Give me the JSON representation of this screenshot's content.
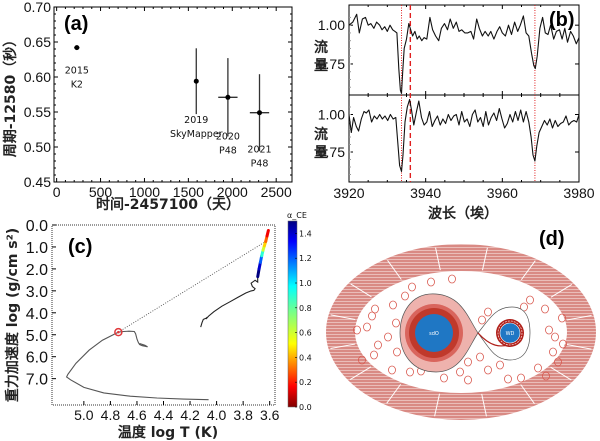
{
  "figure": {
    "panels": [
      "(a)",
      "(b)",
      "(c)",
      "(d)"
    ]
  },
  "chart_data": [
    {
      "id": "a",
      "type": "scatter",
      "panel_label": "(a)",
      "title": "",
      "xlabel": "时间-2457100（天）",
      "ylabel": "周期-12580（秒）",
      "xlim": [
        -30,
        2680
      ],
      "ylim": [
        0.45,
        0.7
      ],
      "xticks": [
        0,
        500,
        1000,
        1500,
        2000,
        2500
      ],
      "xtick_labels": [
        "0",
        "500",
        "1000",
        "1500",
        "2000",
        "2500"
      ],
      "yticks": [
        0.45,
        0.5,
        0.55,
        0.6,
        0.65,
        0.7
      ],
      "ytick_labels": [
        "0.45",
        "0.50",
        "0.55",
        "0.60",
        "0.65",
        "0.70"
      ],
      "points": [
        {
          "x": 230,
          "y": 0.642,
          "xerr": 30,
          "yerr": 0.001,
          "label": [
            "2015",
            "K2"
          ]
        },
        {
          "x": 1590,
          "y": 0.594,
          "xerr": 0,
          "yerr": 0.047,
          "label": [
            "2019",
            "SkyMapper"
          ]
        },
        {
          "x": 1950,
          "y": 0.571,
          "xerr": 110,
          "yerr": 0.056,
          "label": [
            "2020",
            "P48"
          ]
        },
        {
          "x": 2310,
          "y": 0.549,
          "xerr": 110,
          "yerr": 0.055,
          "label": [
            "2021",
            "P48"
          ]
        }
      ]
    },
    {
      "id": "b",
      "type": "line",
      "panel_label": "(b)",
      "xlabel": "波长（埃）",
      "ylabel": "流量",
      "xlim": [
        3920,
        3980
      ],
      "xticks": [
        3920,
        3940,
        3960,
        3980
      ],
      "xtick_labels": [
        "3920",
        "3940",
        "3960",
        "3980"
      ],
      "ylim": [
        0.55,
        1.13
      ],
      "yticks": [
        0.75,
        1.0
      ],
      "ytick_labels": [
        "0.75",
        "1.00"
      ],
      "vlines_dotted": [
        3933.7,
        3968.5
      ],
      "vline_dashed": 3936.0,
      "series": [
        {
          "name": "upper",
          "x": [
            3920,
            3921,
            3922,
            3922.7,
            3923.5,
            3924.3,
            3925,
            3925.7,
            3926.5,
            3927.2,
            3928,
            3928.6,
            3929.3,
            3930,
            3930.7,
            3931.4,
            3932,
            3932.5,
            3933,
            3933.4,
            3933.7,
            3934,
            3934.4,
            3935,
            3935.6,
            3936.1,
            3936.6,
            3937.2,
            3937.8,
            3938.3,
            3939,
            3939.6,
            3940.3,
            3941.1,
            3941.8,
            3942.6,
            3943.4,
            3944.1,
            3944.9,
            3945.7,
            3946.4,
            3947.2,
            3948,
            3948.7,
            3949.4,
            3950.2,
            3951,
            3951.8,
            3952.5,
            3953.3,
            3954,
            3954.8,
            3955.5,
            3956.3,
            3957,
            3957.8,
            3958.6,
            3959.3,
            3960,
            3960.8,
            3961.6,
            3962.4,
            3963.2,
            3964,
            3964.7,
            3965.5,
            3966.2,
            3966.9,
            3967.6,
            3968.2,
            3968.6,
            3969.1,
            3969.8,
            3970.5,
            3971.2,
            3971.9,
            3972.6,
            3973.4,
            3974.1,
            3974.9,
            3975.6,
            3976.3,
            3977,
            3977.8,
            3978.5,
            3979.3,
            3980
          ],
          "y": [
            1.0,
            1.02,
            1.07,
            0.95,
            1.04,
            1.05,
            1.0,
            1.01,
            0.98,
            1.02,
            1.0,
            0.97,
            0.99,
            0.96,
            1.0,
            0.97,
            0.96,
            0.95,
            0.72,
            0.58,
            0.56,
            0.7,
            0.85,
            0.91,
            1.01,
            0.97,
            0.93,
            0.96,
            0.91,
            0.93,
            0.9,
            0.92,
            0.91,
            1.05,
            0.97,
            0.93,
            0.9,
            0.98,
            1.01,
            0.97,
            1.04,
            0.98,
            1.02,
            0.96,
            0.97,
            0.95,
            0.95,
            0.96,
            0.91,
            1.04,
            0.98,
            0.93,
            0.96,
            0.93,
            0.96,
            0.91,
            0.96,
            0.99,
            0.95,
            0.93,
            1.0,
            0.94,
            1.02,
            0.96,
            1.0,
            1.06,
            0.95,
            0.93,
            0.82,
            0.74,
            0.72,
            0.8,
            0.98,
            1.05,
            0.95,
            0.94,
            1.0,
            0.91,
            0.96,
            0.97,
            0.91,
            0.98,
            0.89,
            0.96,
            0.93,
            0.88,
            0.92
          ]
        },
        {
          "name": "lower",
          "x": [
            3920,
            3920.6,
            3921.2,
            3921.9,
            3922.5,
            3923.2,
            3923.9,
            3924.5,
            3925.2,
            3925.9,
            3926.6,
            3927.3,
            3928,
            3928.7,
            3929.4,
            3930.1,
            3930.8,
            3931.5,
            3932.2,
            3932.7,
            3933.2,
            3933.7,
            3934.1,
            3934.6,
            3935.2,
            3935.8,
            3936.3,
            3936.9,
            3937.6,
            3938.2,
            3938.9,
            3939.6,
            3940.3,
            3941,
            3941.7,
            3942.4,
            3943.1,
            3943.8,
            3944.5,
            3945.2,
            3945.9,
            3946.6,
            3947.3,
            3948,
            3948.7,
            3949.4,
            3950.1,
            3950.8,
            3951.5,
            3952.2,
            3952.9,
            3953.6,
            3954.3,
            3955,
            3955.7,
            3956.4,
            3957.1,
            3957.8,
            3958.5,
            3959.2,
            3959.9,
            3960.6,
            3961.3,
            3962,
            3962.7,
            3963.4,
            3964.1,
            3964.8,
            3965.5,
            3966.2,
            3966.9,
            3967.5,
            3968,
            3968.5,
            3969,
            3969.6,
            3970.3,
            3971,
            3971.7,
            3972.4,
            3973.1,
            3973.8,
            3974.5,
            3975.2,
            3975.9,
            3976.6,
            3977.3,
            3978,
            3978.7,
            3979.4,
            3980
          ],
          "y": [
            1.0,
            0.88,
            0.98,
            0.92,
            0.89,
            0.97,
            1.02,
            1.01,
            1.03,
            0.95,
            0.99,
            0.97,
            1.0,
            0.97,
            0.99,
            0.96,
            1.0,
            0.97,
            0.98,
            0.82,
            0.66,
            0.62,
            0.73,
            0.95,
            1.05,
            1.1,
            1.03,
            0.93,
            1.02,
            1.09,
            0.98,
            0.93,
            0.95,
            1.02,
            0.92,
            0.96,
            0.99,
            0.93,
            0.97,
            0.94,
            1.0,
            0.96,
            0.99,
            1.0,
            0.93,
            1.02,
            0.95,
            0.97,
            0.92,
            1.0,
            1.03,
            0.95,
            0.98,
            0.92,
            1.02,
            0.93,
            0.98,
            1.01,
            0.96,
            1.04,
            0.97,
            0.91,
            0.94,
            1.0,
            0.95,
            1.02,
            0.96,
            1.03,
            0.95,
            1.02,
            0.95,
            0.85,
            0.73,
            0.69,
            0.79,
            0.88,
            0.92,
            0.96,
            0.93,
            0.97,
            0.91,
            0.96,
            0.92,
            0.94,
            0.95,
            0.99,
            0.93,
            0.95,
            0.96,
            0.95,
            1.0
          ]
        }
      ]
    },
    {
      "id": "c",
      "type": "line",
      "panel_label": "(c)",
      "xlabel": "温度 log T (K)",
      "ylabel": "重力加速度  log (g/cm s²)",
      "xlim": [
        5.24,
        3.56
      ],
      "ylim": [
        8.2,
        0.0
      ],
      "xticks": [
        5.0,
        4.8,
        4.6,
        4.4,
        4.2,
        4.0,
        3.8,
        3.6
      ],
      "xtick_labels": [
        "5.0",
        "4.8",
        "4.6",
        "4.4",
        "4.2",
        "4.0",
        "3.8",
        "3.6"
      ],
      "yticks": [
        0.0,
        1.0,
        2.0,
        3.0,
        4.0,
        5.0,
        6.0,
        7.0
      ],
      "ytick_labels": [
        "0.0",
        "1.0",
        "2.0",
        "3.0",
        "4.0",
        "5.0",
        "6.0",
        "7.0"
      ],
      "colorbar": {
        "label": "α_CE",
        "range": [
          0.0,
          1.5
        ],
        "ticks": [
          0.0,
          0.2,
          0.4,
          0.6,
          0.8,
          1.0,
          1.2,
          1.4
        ],
        "tick_labels": [
          "0.0",
          "0.2",
          "0.4",
          "0.6",
          "0.8",
          "1.0",
          "1.2",
          "1.4"
        ]
      },
      "tracks": [
        {
          "name": "progenitor-track",
          "color": "#222222",
          "x": [
            4.12,
            4.11,
            4.1,
            4.08,
            4.07,
            4.08,
            4.06,
            4.02,
            3.96,
            3.9,
            3.84,
            3.78,
            3.74,
            3.72,
            3.71,
            3.73,
            3.74,
            3.71,
            3.69,
            3.69
          ],
          "y": [
            4.65,
            4.45,
            4.3,
            4.25,
            4.2,
            4.28,
            4.15,
            3.95,
            3.7,
            3.5,
            3.3,
            3.1,
            3.0,
            2.98,
            2.9,
            2.8,
            2.65,
            2.52,
            2.6,
            2.35
          ]
        },
        {
          "name": "rgb-colored",
          "colored": true,
          "x": [
            3.69,
            3.68,
            3.67,
            3.66,
            3.65,
            3.64,
            3.63,
            3.62,
            3.61
          ],
          "y": [
            2.35,
            2.0,
            1.7,
            1.4,
            1.15,
            0.95,
            0.75,
            0.5,
            0.25
          ],
          "alpha_ce": [
            1.5,
            1.4,
            1.2,
            0.9,
            0.6,
            0.45,
            0.3,
            0.15,
            0.02
          ]
        },
        {
          "name": "sdo-track",
          "color": "#555555",
          "x": [
            4.74,
            4.7,
            4.66,
            4.62,
            4.61,
            4.6,
            4.59,
            4.58,
            4.56,
            4.54,
            4.52,
            4.54,
            4.58
          ],
          "y": [
            4.88,
            4.85,
            4.84,
            4.85,
            4.95,
            5.2,
            5.35,
            5.45,
            5.5,
            5.52,
            5.55,
            5.48,
            5.4
          ]
        },
        {
          "name": "cooling-track",
          "color": "#555555",
          "x": [
            4.74,
            4.86,
            4.96,
            5.06,
            5.12,
            5.13,
            5.1,
            5.0,
            4.85,
            4.65,
            4.45,
            4.25,
            4.06
          ],
          "y": [
            4.88,
            5.25,
            5.7,
            6.3,
            6.8,
            6.92,
            7.05,
            7.4,
            7.65,
            7.8,
            7.88,
            7.93,
            7.96
          ]
        }
      ],
      "dotted_line": {
        "x": [
          4.74,
          3.63
        ],
        "y": [
          4.88,
          0.75
        ]
      },
      "marker": {
        "x": 4.74,
        "y": 4.88,
        "color": "#e0393b"
      }
    }
  ],
  "diagram_d": {
    "panel_label": "(d)",
    "primary_label": "sdO",
    "secondary_label": "WD",
    "colors": {
      "envelope": "#d9807a",
      "circles": "#d9594f",
      "lobe_outer": "#eeb2ad",
      "lobe_mid": "#d9655d",
      "lobe_inner": "#c0392b",
      "core": "#1f77c4",
      "stream": "#b0201a"
    }
  }
}
